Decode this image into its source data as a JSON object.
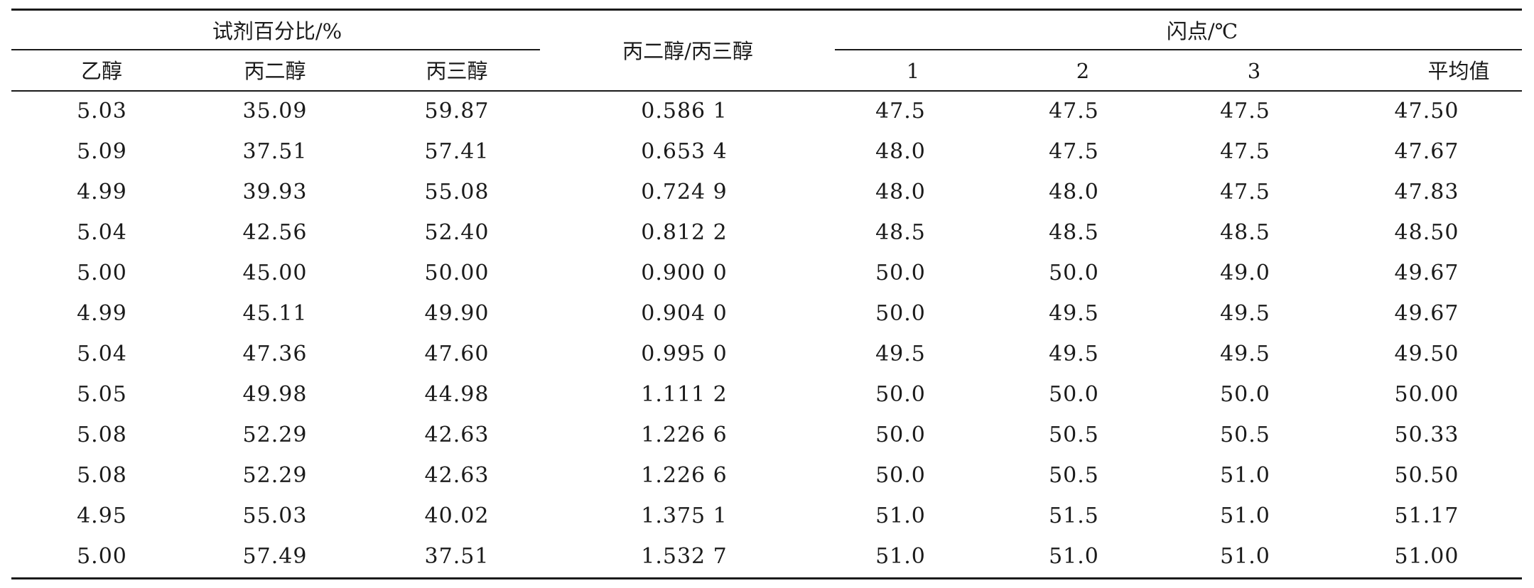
{
  "table": {
    "group_headers": {
      "reagent_percent": "试剂百分比/%",
      "ratio": "丙二醇/丙三醇",
      "flash_point": "闪点/℃"
    },
    "sub_headers": {
      "ethanol": "乙醇",
      "propylene_glycol": "丙二醇",
      "glycerol": "丙三醇",
      "trial_1": "1",
      "trial_2": "2",
      "trial_3": "3",
      "average": "平均值"
    },
    "rows": [
      [
        "5.03",
        "35.09",
        "59.87",
        "0.586 1",
        "47.5",
        "47.5",
        "47.5",
        "47.50"
      ],
      [
        "5.09",
        "37.51",
        "57.41",
        "0.653 4",
        "48.0",
        "47.5",
        "47.5",
        "47.67"
      ],
      [
        "4.99",
        "39.93",
        "55.08",
        "0.724 9",
        "48.0",
        "48.0",
        "47.5",
        "47.83"
      ],
      [
        "5.04",
        "42.56",
        "52.40",
        "0.812 2",
        "48.5",
        "48.5",
        "48.5",
        "48.50"
      ],
      [
        "5.00",
        "45.00",
        "50.00",
        "0.900 0",
        "50.0",
        "50.0",
        "49.0",
        "49.67"
      ],
      [
        "4.99",
        "45.11",
        "49.90",
        "0.904 0",
        "50.0",
        "49.5",
        "49.5",
        "49.67"
      ],
      [
        "5.04",
        "47.36",
        "47.60",
        "0.995 0",
        "49.5",
        "49.5",
        "49.5",
        "49.50"
      ],
      [
        "5.05",
        "49.98",
        "44.98",
        "1.111 2",
        "50.0",
        "50.0",
        "50.0",
        "50.00"
      ],
      [
        "5.08",
        "52.29",
        "42.63",
        "1.226 6",
        "50.0",
        "50.5",
        "50.5",
        "50.33"
      ],
      [
        "5.08",
        "52.29",
        "42.63",
        "1.226 6",
        "50.0",
        "50.5",
        "51.0",
        "50.50"
      ],
      [
        "4.95",
        "55.03",
        "40.02",
        "1.375 1",
        "51.0",
        "51.5",
        "51.0",
        "51.17"
      ],
      [
        "5.00",
        "57.49",
        "37.51",
        "1.532 7",
        "51.0",
        "51.0",
        "51.0",
        "51.00"
      ]
    ]
  }
}
